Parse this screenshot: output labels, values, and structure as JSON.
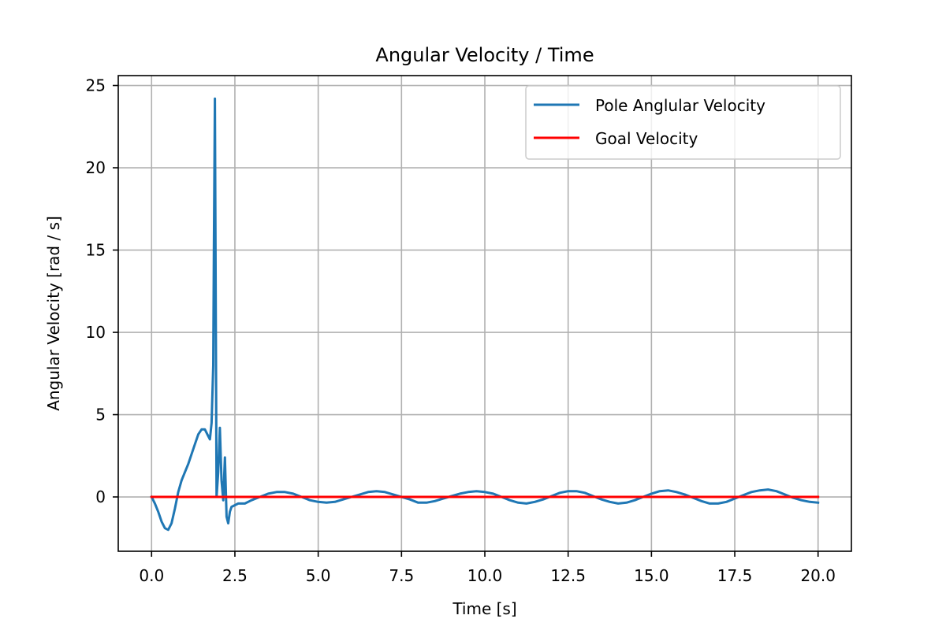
{
  "chart_data": {
    "type": "line",
    "title": "Angular Velocity / Time",
    "xlabel": "Time [s]",
    "ylabel": "Angular Velocity [rad / s]",
    "xlim": [
      -1.0,
      21.0
    ],
    "ylim": [
      -3.3,
      25.6
    ],
    "xticks": [
      "0.0",
      "2.5",
      "5.0",
      "7.5",
      "10.0",
      "12.5",
      "15.0",
      "17.5",
      "20.0"
    ],
    "yticks": [
      "0",
      "5",
      "10",
      "15",
      "20",
      "25"
    ],
    "grid": true,
    "legend_position": "top-right",
    "colors": {
      "pole": "#1f77b4",
      "goal": "#ff0000"
    },
    "series": [
      {
        "name": "Pole Anglular Velocity",
        "key": "pole",
        "x": [
          0.0,
          0.1,
          0.2,
          0.3,
          0.4,
          0.5,
          0.6,
          0.7,
          0.8,
          0.9,
          1.0,
          1.1,
          1.2,
          1.3,
          1.4,
          1.5,
          1.6,
          1.7,
          1.75,
          1.8,
          1.85,
          1.87,
          1.9,
          1.92,
          1.95,
          2.0,
          2.05,
          2.1,
          2.15,
          2.2,
          2.25,
          2.3,
          2.35,
          2.4,
          2.5,
          2.6,
          2.7,
          2.8,
          3.0,
          3.25,
          3.5,
          3.75,
          4.0,
          4.25,
          4.5,
          4.75,
          5.0,
          5.25,
          5.5,
          5.75,
          6.0,
          6.25,
          6.5,
          6.75,
          7.0,
          7.25,
          7.5,
          7.75,
          8.0,
          8.25,
          8.5,
          8.75,
          9.0,
          9.25,
          9.5,
          9.75,
          10.0,
          10.25,
          10.5,
          10.75,
          11.0,
          11.25,
          11.5,
          11.75,
          12.0,
          12.25,
          12.5,
          12.75,
          13.0,
          13.25,
          13.5,
          13.75,
          14.0,
          14.25,
          14.5,
          14.75,
          15.0,
          15.25,
          15.5,
          15.75,
          16.0,
          16.25,
          16.5,
          16.75,
          17.0,
          17.25,
          17.5,
          17.75,
          18.0,
          18.25,
          18.5,
          18.75,
          19.0,
          19.25,
          19.5,
          19.75,
          20.0
        ],
        "y": [
          0.0,
          -0.4,
          -0.9,
          -1.5,
          -1.9,
          -2.0,
          -1.6,
          -0.7,
          0.3,
          1.0,
          1.5,
          2.0,
          2.6,
          3.2,
          3.8,
          4.1,
          4.1,
          3.7,
          3.5,
          4.5,
          8.0,
          15.0,
          24.2,
          15.0,
          0.0,
          1.5,
          4.2,
          1.0,
          -0.2,
          2.4,
          -1.2,
          -1.6,
          -0.9,
          -0.6,
          -0.5,
          -0.4,
          -0.4,
          -0.4,
          -0.2,
          0.0,
          0.2,
          0.3,
          0.3,
          0.2,
          0.0,
          -0.2,
          -0.3,
          -0.35,
          -0.3,
          -0.15,
          0.0,
          0.15,
          0.3,
          0.35,
          0.3,
          0.15,
          0.0,
          -0.15,
          -0.35,
          -0.35,
          -0.25,
          -0.1,
          0.05,
          0.2,
          0.3,
          0.35,
          0.3,
          0.2,
          0.0,
          -0.2,
          -0.35,
          -0.4,
          -0.3,
          -0.15,
          0.05,
          0.25,
          0.35,
          0.35,
          0.25,
          0.05,
          -0.15,
          -0.3,
          -0.4,
          -0.35,
          -0.2,
          0.0,
          0.2,
          0.35,
          0.4,
          0.3,
          0.15,
          -0.05,
          -0.25,
          -0.4,
          -0.4,
          -0.3,
          -0.1,
          0.1,
          0.3,
          0.4,
          0.45,
          0.35,
          0.15,
          -0.05,
          -0.2,
          -0.3,
          -0.35
        ]
      },
      {
        "name": "Goal Velocity",
        "key": "goal",
        "x": [
          0.0,
          20.0
        ],
        "y": [
          0.0,
          0.0
        ]
      }
    ]
  }
}
